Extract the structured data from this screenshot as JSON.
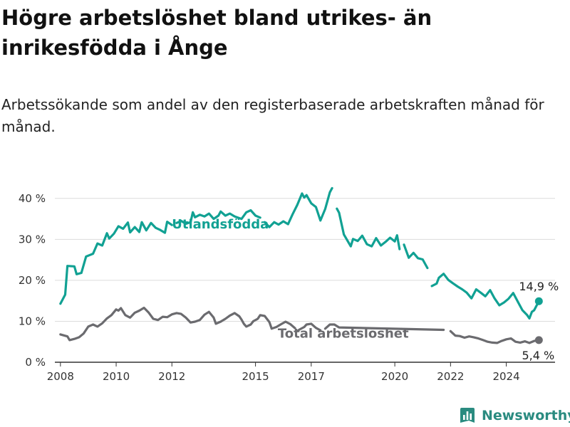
{
  "title": "Högre arbetslöshet bland utrikes- än inrikesfödda i Ånge",
  "subtitle": "Arbetssökande som andel av den registerbaserade arbetskraften månad för månad.",
  "brand": {
    "name": "Newsworthy",
    "icon": "bar-chart-logo-icon",
    "color": "#2a8b80"
  },
  "chart_data": {
    "type": "line",
    "title": "Högre arbetslöshet bland utrikes- än inrikesfödda i Ånge",
    "subtitle": "Arbetssökande som andel av den registerbaserade arbetskraften månad för månad.",
    "xlabel": "",
    "ylabel": "",
    "x_ticks": [
      2008,
      2010,
      2012,
      2015,
      2017,
      2020,
      2022,
      2024
    ],
    "y_ticks": [
      0,
      10,
      20,
      30,
      40
    ],
    "y_tick_labels": [
      "0 %",
      "10 %",
      "20 %",
      "30 %",
      "40 %"
    ],
    "ylim": [
      0,
      45
    ],
    "xlim": [
      2007.8,
      2025.75
    ],
    "grid": "horizontal",
    "legend": "inline labels",
    "series": [
      {
        "name": "Utlandsfödda",
        "color": "#11a193",
        "end_label": "14,9 %",
        "points": [
          [
            2008.0,
            14.3
          ],
          [
            2008.17,
            16.5
          ],
          [
            2008.25,
            23.5
          ],
          [
            2008.5,
            23.4
          ],
          [
            2008.58,
            21.5
          ],
          [
            2008.75,
            21.8
          ],
          [
            2008.92,
            25.8
          ],
          [
            2009.17,
            26.5
          ],
          [
            2009.33,
            29.0
          ],
          [
            2009.5,
            28.5
          ],
          [
            2009.67,
            31.5
          ],
          [
            2009.75,
            30.2
          ],
          [
            2009.92,
            31.4
          ],
          [
            2010.08,
            33.2
          ],
          [
            2010.25,
            32.6
          ],
          [
            2010.42,
            34.1
          ],
          [
            2010.5,
            31.7
          ],
          [
            2010.67,
            33.0
          ],
          [
            2010.83,
            31.8
          ],
          [
            2010.92,
            34.2
          ],
          [
            2011.08,
            32.2
          ],
          [
            2011.25,
            34.0
          ],
          [
            2011.42,
            32.8
          ],
          [
            2011.58,
            32.3
          ],
          [
            2011.75,
            31.6
          ],
          [
            2011.83,
            34.3
          ],
          [
            2012.0,
            33.5
          ],
          [
            2012.17,
            34.0
          ],
          [
            2012.33,
            34.5
          ],
          [
            2012.5,
            33.8
          ],
          [
            2012.67,
            34.2
          ],
          [
            2012.75,
            36.6
          ],
          [
            2012.83,
            35.4
          ],
          [
            2013.0,
            36.0
          ],
          [
            2013.17,
            35.6
          ],
          [
            2013.33,
            36.3
          ],
          [
            2013.5,
            35.0
          ],
          [
            2013.67,
            35.8
          ],
          [
            2013.75,
            36.8
          ],
          [
            2013.92,
            35.8
          ],
          [
            2014.08,
            36.3
          ],
          [
            2014.25,
            35.6
          ],
          [
            2014.5,
            35.0
          ],
          [
            2014.67,
            36.6
          ],
          [
            2014.83,
            37.1
          ],
          [
            2015.0,
            35.8
          ],
          [
            2015.17,
            35.3
          ],
          [
            2015.33,
            34.2
          ],
          [
            2015.5,
            33.0
          ],
          [
            2015.67,
            34.2
          ],
          [
            2015.83,
            33.6
          ],
          [
            2016.0,
            34.4
          ],
          [
            2016.17,
            33.7
          ],
          [
            2016.33,
            36.1
          ],
          [
            2016.5,
            38.4
          ],
          [
            2016.67,
            41.2
          ],
          [
            2016.75,
            40.2
          ],
          [
            2016.83,
            40.8
          ],
          [
            2017.0,
            38.8
          ],
          [
            2017.17,
            37.9
          ],
          [
            2017.33,
            34.6
          ],
          [
            2017.5,
            37.4
          ],
          [
            2017.67,
            41.5
          ],
          [
            2017.75,
            42.5
          ],
          [
            2017.92,
            37.5
          ],
          [
            2018.0,
            36.5
          ],
          [
            2018.17,
            31.2
          ],
          [
            2018.42,
            28.3
          ],
          [
            2018.5,
            30.1
          ],
          [
            2018.67,
            29.6
          ],
          [
            2018.83,
            30.9
          ],
          [
            2019.0,
            28.8
          ],
          [
            2019.17,
            28.3
          ],
          [
            2019.33,
            30.3
          ],
          [
            2019.5,
            28.5
          ],
          [
            2019.67,
            29.4
          ],
          [
            2019.83,
            30.4
          ],
          [
            2020.0,
            29.5
          ],
          [
            2020.08,
            31.0
          ],
          [
            2020.17,
            27.6
          ],
          [
            2020.33,
            28.7
          ],
          [
            2020.5,
            25.5
          ],
          [
            2020.67,
            26.7
          ],
          [
            2020.83,
            25.4
          ],
          [
            2021.0,
            25.1
          ],
          [
            2021.17,
            23.0
          ],
          [
            2021.33,
            18.6
          ],
          [
            2021.5,
            19.2
          ],
          [
            2021.58,
            20.6
          ],
          [
            2021.75,
            21.6
          ],
          [
            2021.92,
            20.1
          ],
          [
            2022.08,
            19.3
          ],
          [
            2022.25,
            18.5
          ],
          [
            2022.42,
            17.8
          ],
          [
            2022.58,
            17.0
          ],
          [
            2022.75,
            15.6
          ],
          [
            2022.92,
            17.8
          ],
          [
            2023.08,
            17.0
          ],
          [
            2023.25,
            16.1
          ],
          [
            2023.42,
            17.6
          ],
          [
            2023.58,
            15.6
          ],
          [
            2023.75,
            13.9
          ],
          [
            2023.92,
            14.6
          ],
          [
            2024.08,
            15.5
          ],
          [
            2024.25,
            16.9
          ],
          [
            2024.42,
            14.7
          ],
          [
            2024.58,
            12.7
          ],
          [
            2024.75,
            11.5
          ],
          [
            2024.83,
            10.7
          ],
          [
            2024.92,
            12.3
          ],
          [
            2025.0,
            12.7
          ],
          [
            2025.17,
            14.9
          ]
        ],
        "gaps": [
          2012.17,
          2015.25,
          2017.92,
          2020.33,
          2021.33
        ]
      },
      {
        "name": "Total arbetslöshet",
        "color": "#6b6b6f",
        "end_label": "5,4 %",
        "points": [
          [
            2008.0,
            6.8
          ],
          [
            2008.25,
            6.3
          ],
          [
            2008.33,
            5.4
          ],
          [
            2008.5,
            5.7
          ],
          [
            2008.67,
            6.1
          ],
          [
            2008.83,
            7.0
          ],
          [
            2009.0,
            8.7
          ],
          [
            2009.17,
            9.2
          ],
          [
            2009.33,
            8.7
          ],
          [
            2009.5,
            9.5
          ],
          [
            2009.67,
            10.7
          ],
          [
            2009.83,
            11.5
          ],
          [
            2010.0,
            12.9
          ],
          [
            2010.08,
            12.6
          ],
          [
            2010.17,
            13.2
          ],
          [
            2010.33,
            11.5
          ],
          [
            2010.5,
            10.9
          ],
          [
            2010.67,
            12.1
          ],
          [
            2010.83,
            12.6
          ],
          [
            2011.0,
            13.3
          ],
          [
            2011.17,
            12.1
          ],
          [
            2011.33,
            10.6
          ],
          [
            2011.5,
            10.3
          ],
          [
            2011.67,
            11.1
          ],
          [
            2011.83,
            11.0
          ],
          [
            2012.0,
            11.7
          ],
          [
            2012.17,
            12.0
          ],
          [
            2012.33,
            11.8
          ],
          [
            2012.5,
            10.9
          ],
          [
            2012.67,
            9.7
          ],
          [
            2012.83,
            9.9
          ],
          [
            2013.0,
            10.3
          ],
          [
            2013.17,
            11.6
          ],
          [
            2013.33,
            12.3
          ],
          [
            2013.5,
            10.9
          ],
          [
            2013.58,
            9.4
          ],
          [
            2013.75,
            9.9
          ],
          [
            2013.92,
            10.6
          ],
          [
            2014.08,
            11.4
          ],
          [
            2014.25,
            12.0
          ],
          [
            2014.42,
            11.2
          ],
          [
            2014.5,
            10.4
          ],
          [
            2014.58,
            9.4
          ],
          [
            2014.67,
            8.7
          ],
          [
            2014.83,
            9.2
          ],
          [
            2014.92,
            10.0
          ],
          [
            2015.08,
            10.6
          ],
          [
            2015.17,
            11.5
          ],
          [
            2015.33,
            11.3
          ],
          [
            2015.5,
            9.8
          ],
          [
            2015.58,
            8.2
          ],
          [
            2015.75,
            8.6
          ],
          [
            2015.92,
            9.3
          ],
          [
            2016.08,
            9.9
          ],
          [
            2016.25,
            9.3
          ],
          [
            2016.42,
            8.3
          ],
          [
            2016.5,
            7.6
          ],
          [
            2016.58,
            8.0
          ],
          [
            2016.75,
            8.6
          ],
          [
            2016.83,
            9.2
          ],
          [
            2017.0,
            9.4
          ],
          [
            2017.17,
            8.4
          ],
          [
            2017.33,
            7.8
          ],
          [
            2017.5,
            8.2
          ],
          [
            2017.67,
            9.2
          ],
          [
            2017.83,
            9.2
          ],
          [
            2018.0,
            8.5
          ],
          [
            2021.75,
            7.9
          ],
          [
            2022.0,
            7.6
          ],
          [
            2022.17,
            6.5
          ],
          [
            2022.33,
            6.4
          ],
          [
            2022.5,
            6.0
          ],
          [
            2022.67,
            6.3
          ],
          [
            2022.83,
            6.1
          ],
          [
            2023.0,
            5.8
          ],
          [
            2023.17,
            5.4
          ],
          [
            2023.33,
            5.0
          ],
          [
            2023.5,
            4.8
          ],
          [
            2023.67,
            4.7
          ],
          [
            2023.83,
            5.2
          ],
          [
            2024.0,
            5.6
          ],
          [
            2024.17,
            5.8
          ],
          [
            2024.33,
            5.0
          ],
          [
            2024.5,
            4.8
          ],
          [
            2024.67,
            5.1
          ],
          [
            2024.83,
            4.7
          ],
          [
            2025.0,
            5.2
          ],
          [
            2025.17,
            5.4
          ]
        ],
        "gaps": [
          2016.5,
          2017.5,
          2022.0
        ]
      }
    ]
  }
}
